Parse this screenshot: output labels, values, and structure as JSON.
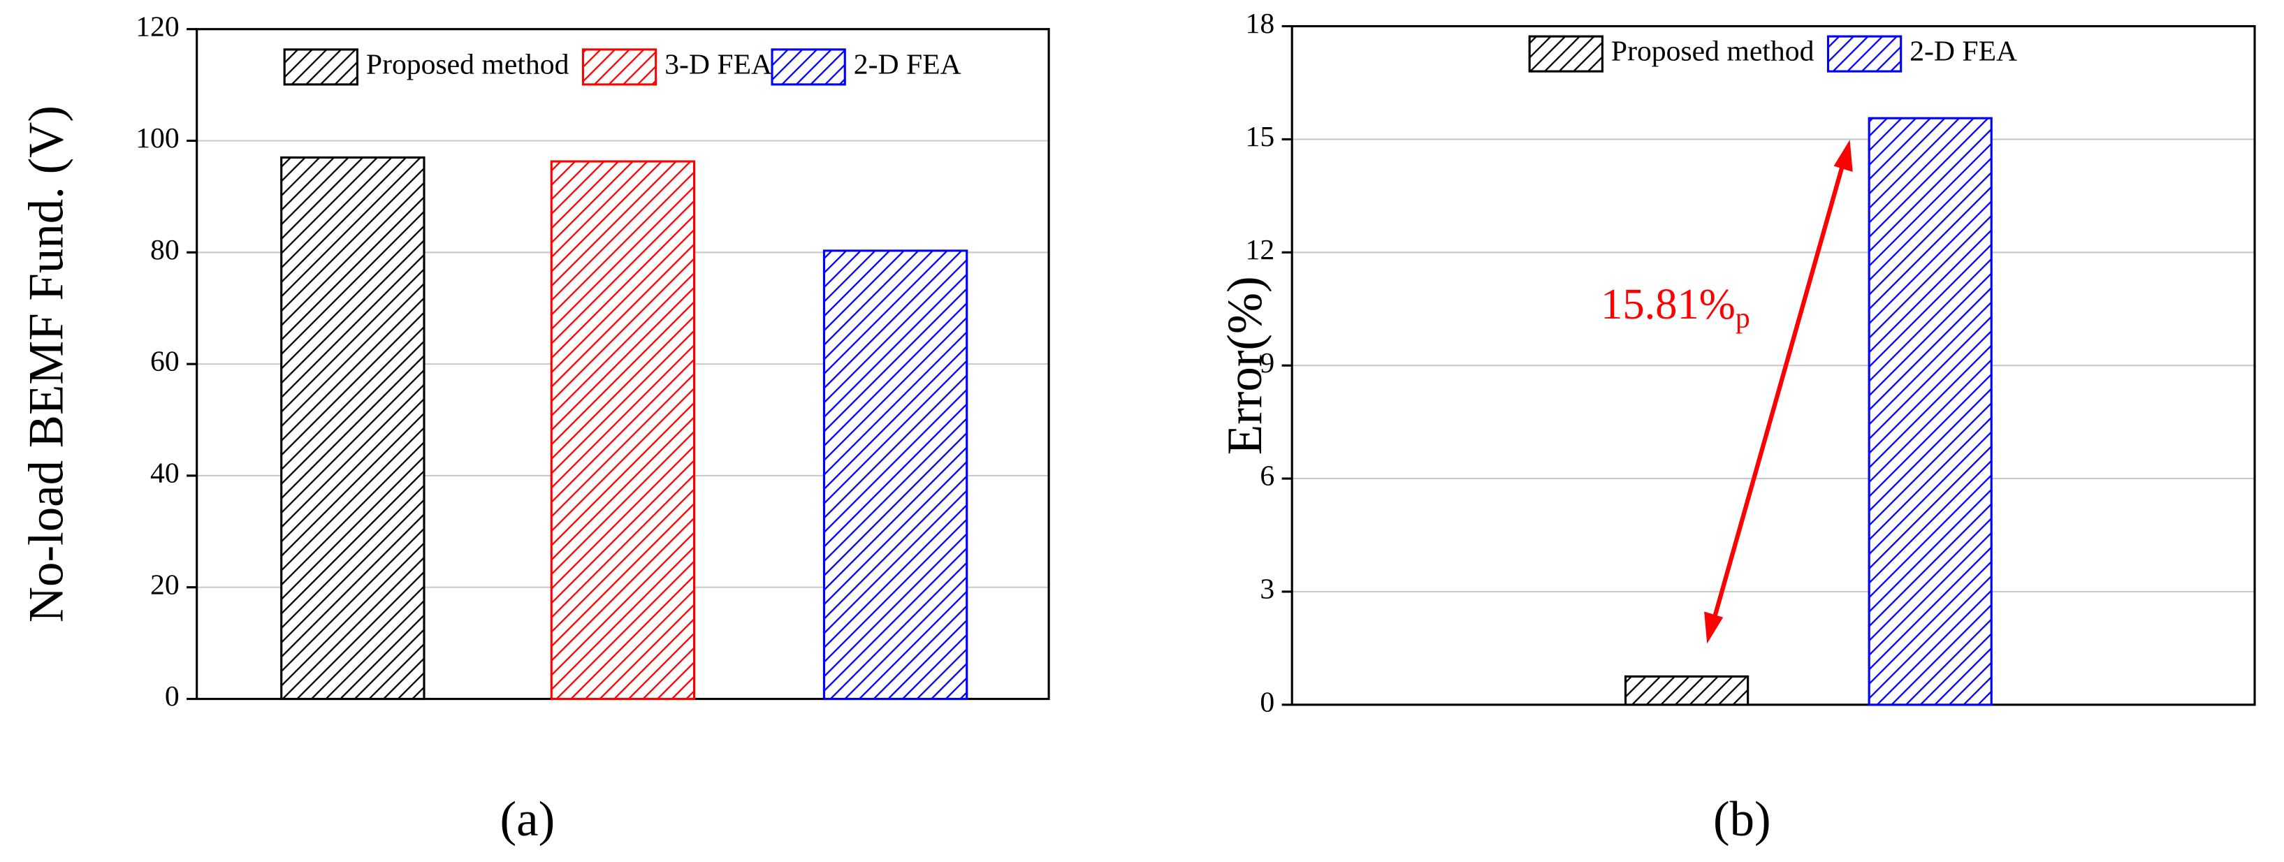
{
  "chart_data": [
    {
      "type": "bar",
      "ylabel": "No-load BEMF Fund. (V)",
      "caption": "(a)",
      "ylim": [
        0,
        120
      ],
      "yticks": [
        0,
        20,
        40,
        60,
        80,
        100,
        120
      ],
      "grid": true,
      "series": [
        {
          "name": "Proposed method",
          "color": "#000000",
          "values": [
            97
          ]
        },
        {
          "name": "3-D FEA",
          "color": "#ff0000",
          "values": [
            96.3
          ]
        },
        {
          "name": "2-D FEA",
          "color": "#0000ff",
          "values": [
            80.3
          ]
        }
      ]
    },
    {
      "type": "bar",
      "ylabel": "Error(%)",
      "caption": "(b)",
      "ylim": [
        0,
        18
      ],
      "yticks": [
        0,
        3,
        6,
        9,
        12,
        15,
        18
      ],
      "grid": true,
      "annotation": {
        "text": "15.81%",
        "subscript": "p",
        "color": "#ff0000"
      },
      "series": [
        {
          "name": "Proposed method",
          "color": "#000000",
          "values": [
            0.75
          ]
        },
        {
          "name": "2-D FEA",
          "color": "#0000ff",
          "values": [
            15.56
          ]
        }
      ]
    }
  ]
}
